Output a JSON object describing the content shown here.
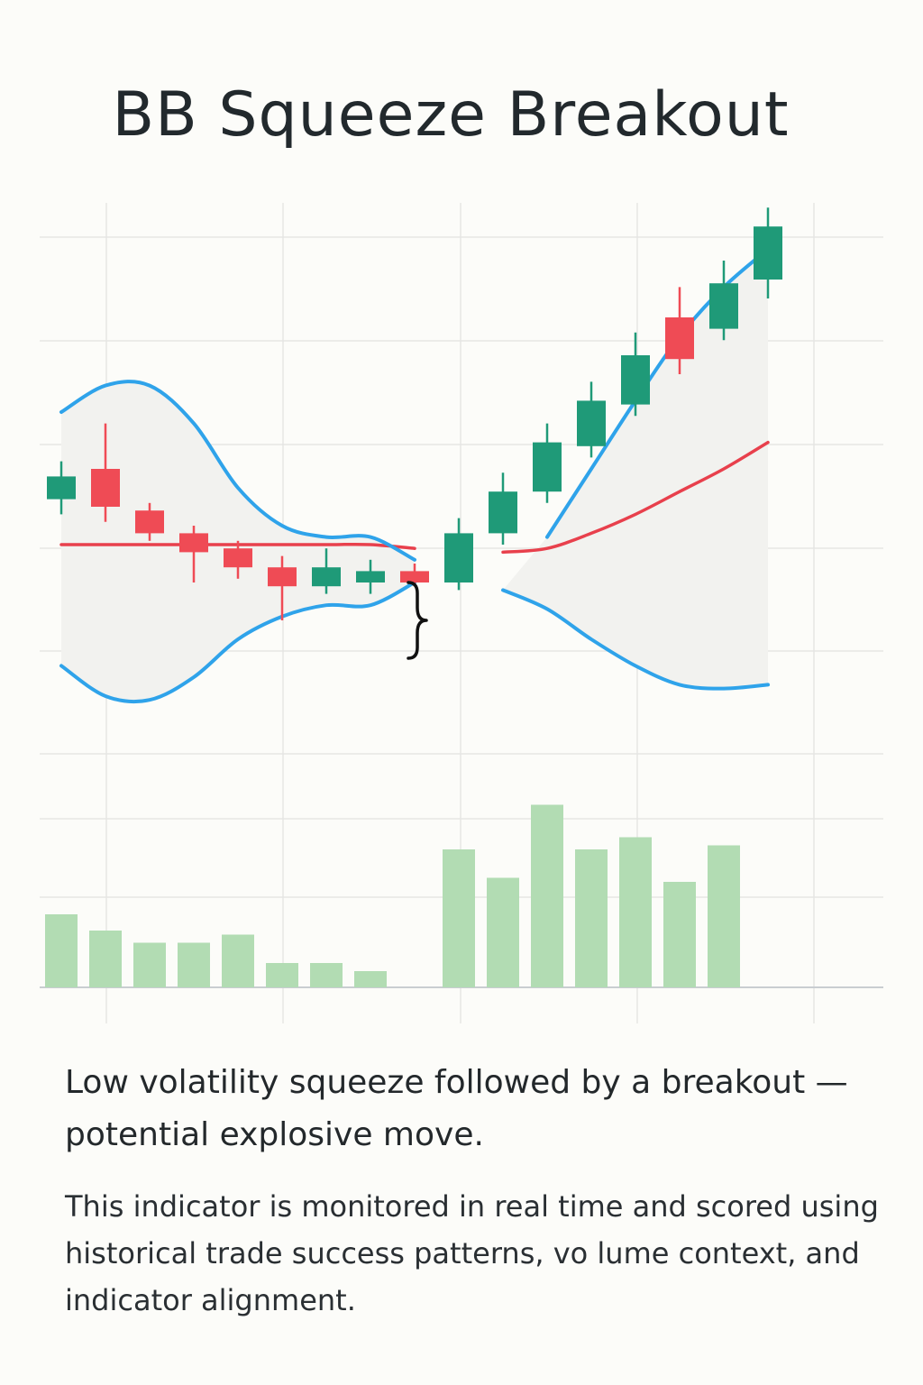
{
  "title": "BB Squeeze Breakout",
  "headline": "Low volatility squeeze followed by a breakout — potential explosive move.",
  "description": "This indicator is monitored in real time and scored using historical trade success patterns, vo lume context, and indicator alignment.",
  "colors": {
    "bullish": "#1f9a78",
    "bearish": "#ef4b55",
    "bands": "#2fa3ea",
    "middle_band": "#e8404c",
    "volume": "#b2dcb3",
    "band_fill": "#f2f2ef",
    "grid": "#e6e6e4"
  },
  "chart_data": {
    "type": "candlestick",
    "title": "BB Squeeze Breakout",
    "xlabel": "",
    "ylabel": "",
    "grid": true,
    "ylim": [
      0,
      100
    ],
    "annotations": [
      {
        "type": "brace",
        "at_index": 9,
        "meaning": "squeeze"
      }
    ],
    "candles": [
      {
        "i": 0,
        "open": 42,
        "close": 48,
        "high": 52,
        "low": 38,
        "dir": "up"
      },
      {
        "i": 1,
        "open": 50,
        "close": 40,
        "high": 62,
        "low": 36,
        "dir": "down"
      },
      {
        "i": 2,
        "open": 39,
        "close": 33,
        "high": 41,
        "low": 31,
        "dir": "down"
      },
      {
        "i": 3,
        "open": 33,
        "close": 28,
        "high": 35,
        "low": 20,
        "dir": "down"
      },
      {
        "i": 4,
        "open": 29,
        "close": 24,
        "high": 31,
        "low": 21,
        "dir": "down"
      },
      {
        "i": 5,
        "open": 24,
        "close": 19,
        "high": 27,
        "low": 10,
        "dir": "down"
      },
      {
        "i": 6,
        "open": 19,
        "close": 24,
        "high": 29,
        "low": 17,
        "dir": "up"
      },
      {
        "i": 7,
        "open": 20,
        "close": 23,
        "high": 26,
        "low": 17,
        "dir": "up"
      },
      {
        "i": 8,
        "open": 23,
        "close": 20,
        "high": 25,
        "low": 19,
        "dir": "down"
      },
      {
        "i": 9,
        "open": 20,
        "close": 33,
        "high": 37,
        "low": 18,
        "dir": "up"
      },
      {
        "i": 10,
        "open": 33,
        "close": 44,
        "high": 49,
        "low": 30,
        "dir": "up"
      },
      {
        "i": 11,
        "open": 44,
        "close": 57,
        "high": 62,
        "low": 41,
        "dir": "up"
      },
      {
        "i": 12,
        "open": 56,
        "close": 68,
        "high": 73,
        "low": 53,
        "dir": "up"
      },
      {
        "i": 13,
        "open": 67,
        "close": 80,
        "high": 86,
        "low": 64,
        "dir": "up"
      },
      {
        "i": 14,
        "open": 90,
        "close": 79,
        "high": 98,
        "low": 75,
        "dir": "down"
      },
      {
        "i": 15,
        "open": 87,
        "close": 99,
        "high": 105,
        "low": 84,
        "dir": "up"
      },
      {
        "i": 16,
        "open": 100,
        "close": 114,
        "high": 119,
        "low": 95,
        "dir": "up"
      }
    ],
    "volume": [
      18,
      14,
      11,
      11,
      13,
      6,
      6,
      4,
      0,
      34,
      27,
      45,
      34,
      37,
      26,
      35,
      0
    ],
    "bands": {
      "upper": [
        65,
        72,
        72,
        62,
        45,
        35,
        32,
        32,
        26,
        null,
        null,
        32,
        50,
        68,
        85,
        98,
        108
      ],
      "middle": [
        30,
        30,
        30,
        30,
        30,
        30,
        30,
        30,
        29,
        null,
        28,
        29,
        33,
        38,
        44,
        50,
        57
      ],
      "lower": [
        -2,
        -10,
        -11,
        -5,
        5,
        11,
        14,
        14,
        20,
        null,
        18,
        13,
        5,
        -2,
        -7,
        -8,
        -7
      ]
    }
  }
}
